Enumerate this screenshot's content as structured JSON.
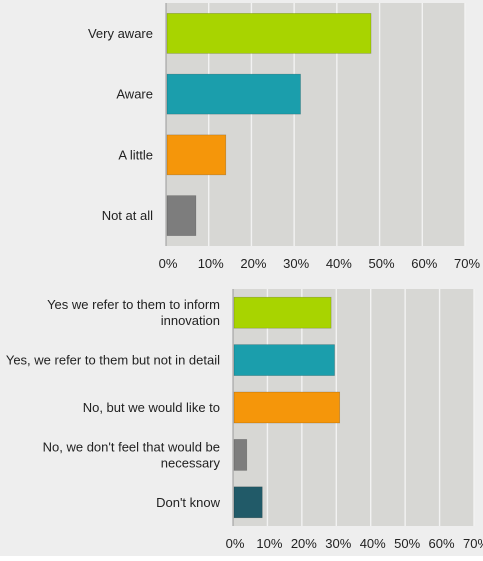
{
  "chart_data": [
    {
      "type": "bar",
      "orientation": "horizontal",
      "categories": [
        "Very aware",
        "Aware",
        "A little",
        "Not at all"
      ],
      "values": [
        48,
        31.5,
        14,
        7
      ],
      "colors": [
        "#a8d400",
        "#1b9eac",
        "#f5960a",
        "#7d7d7d"
      ],
      "xlim": [
        0,
        70
      ],
      "x_ticks": [
        "0%",
        "10%",
        "20%",
        "30%",
        "40%",
        "50%",
        "60%",
        "70%"
      ],
      "grid": true,
      "title": "",
      "xlabel": "",
      "ylabel": ""
    },
    {
      "type": "bar",
      "orientation": "horizontal",
      "categories": [
        "Yes we refer to them to inform innovation",
        "Yes, we refer to them but not in detail",
        "No, but we would like to",
        "No, we don't feel that would be necessary",
        "Don't know"
      ],
      "category_lines": [
        [
          "Yes we refer to them to inform",
          "innovation"
        ],
        [
          "Yes, we refer to them but not in detail"
        ],
        [
          "No, but we would like to"
        ],
        [
          "No, we don't feel that would be",
          "necessary"
        ],
        [
          "Don't know"
        ]
      ],
      "values": [
        28.5,
        29.5,
        31,
        4,
        8.5
      ],
      "colors": [
        "#a8d400",
        "#1b9eac",
        "#f5960a",
        "#7d7d7d",
        "#215a68"
      ],
      "xlim": [
        0,
        70
      ],
      "x_ticks": [
        "0%",
        "10%",
        "20%",
        "30%",
        "40%",
        "50%",
        "60%",
        "70%"
      ],
      "grid": true,
      "title": "",
      "xlabel": "",
      "ylabel": ""
    }
  ]
}
